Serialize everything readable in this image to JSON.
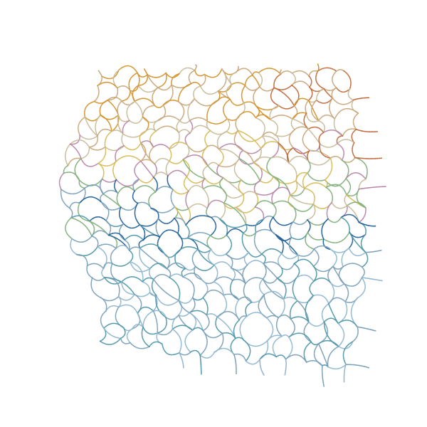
{
  "artwork": {
    "background": "#ffffff",
    "grid": {
      "columns": 18,
      "rows": 19
    },
    "palette": {
      "orange": "#d4922a",
      "rust": "#c0693a",
      "tan": "#c9a77a",
      "beige": "#c8bc9a",
      "mustard": "#d6bb55",
      "mauve": "#b886a8",
      "sage": "#7fb07a",
      "navy": "#1f5f9a",
      "teal": "#4e97a8",
      "steel": "#7aa0b8",
      "sky": "#8fb7d0"
    }
  }
}
